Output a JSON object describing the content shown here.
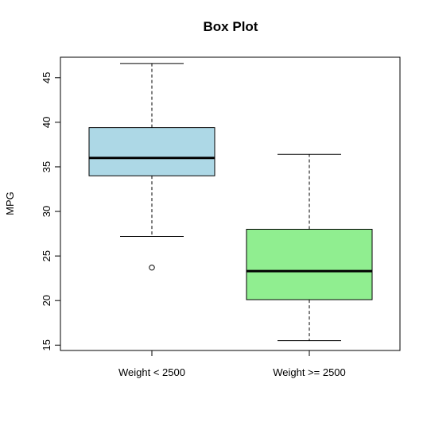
{
  "chart_data": {
    "type": "box",
    "title": "Box Plot",
    "xlabel": "",
    "ylabel": "MPG",
    "ylim": [
      14.4,
      47.3
    ],
    "yticks": [
      15,
      20,
      25,
      30,
      35,
      40,
      45
    ],
    "grid": false,
    "groups": [
      {
        "label": "Weight < 2500",
        "color": "#ADD8E6",
        "whisker_low": 27.2,
        "q1": 34.0,
        "median": 36.0,
        "q3": 39.4,
        "whisker_high": 46.6,
        "outliers": [
          23.7
        ]
      },
      {
        "label": "Weight >= 2500",
        "color": "#90EE90",
        "whisker_low": 15.5,
        "q1": 20.1,
        "median": 23.3,
        "q3": 28.0,
        "whisker_high": 36.4,
        "outliers": []
      }
    ]
  }
}
